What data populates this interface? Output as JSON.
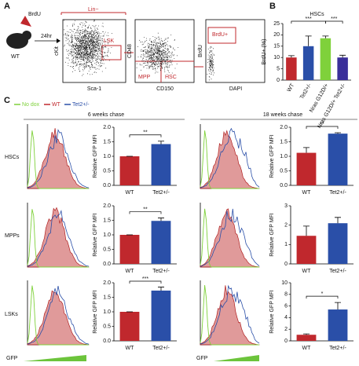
{
  "figure": {
    "panels": [
      "A",
      "B",
      "C"
    ],
    "schematic": {
      "injection": "BrdU",
      "time": "24hr",
      "mouse": "WT"
    },
    "flow_labels": {
      "lin": "Lin−",
      "lsk": "LSK",
      "ckit": "cKit",
      "sca1": "Sca-1",
      "cd48": "CD48",
      "cd150": "CD150",
      "mpp": "MPP",
      "hsc": "HSC",
      "brdu_axis": "BrdU",
      "dapi": "DAPI",
      "brdu_gate": "BrdU+"
    },
    "legend": [
      "No dox",
      "WT",
      "Tet2+/-"
    ],
    "chase": [
      "6 weeks chase",
      "18 weeks chase"
    ],
    "rows": [
      "HSCs",
      "MPPs",
      "LSKs"
    ],
    "gfp": "GFP"
  },
  "chart_data": [
    {
      "type": "bar",
      "title": "HSCs",
      "y_label": "BrdU+ (%)",
      "categories": [
        "WT",
        "Tet2+/-",
        "Nras G12D/+",
        "Nras G12D/+ Tet2+/-"
      ],
      "values": [
        10,
        15,
        18.5,
        10
      ],
      "errors": [
        0.8,
        4.5,
        1,
        1
      ],
      "colors": [
        "#c0282d",
        "#2a4fa8",
        "#7fd13b",
        "#3a2f9a"
      ],
      "ylim": [
        0,
        25
      ],
      "yticks": [
        0,
        5,
        10,
        15,
        20,
        25
      ],
      "annotations": [
        "***",
        "***"
      ]
    },
    {
      "type": "bar",
      "y_label": "Relative GFP MFI",
      "categories": [
        "WT",
        "Tet2+/-"
      ],
      "values": [
        1,
        1.42
      ],
      "errors": [
        0,
        0.1
      ],
      "colors": [
        "#c0282d",
        "#2a4fa8"
      ],
      "ylim": [
        0,
        2
      ],
      "yticks": [
        {
          "value": 0,
          "label": "0.0"
        },
        0.5,
        {
          "value": 1,
          "label": "1.0"
        },
        1.5,
        {
          "value": 2,
          "label": "2.0"
        }
      ],
      "annotations": [
        "**"
      ]
    },
    {
      "type": "bar",
      "y_label": "Relative GFP MFI",
      "categories": [
        "WT",
        "Tet2+/-"
      ],
      "values": [
        1,
        1.48
      ],
      "errors": [
        0,
        0.1
      ],
      "colors": [
        "#c0282d",
        "#2a4fa8"
      ],
      "ylim": [
        0,
        2
      ],
      "yticks": [
        {
          "value": 0,
          "label": "0.0"
        },
        0.5,
        {
          "value": 1,
          "label": "1.0"
        },
        1.5,
        {
          "value": 2,
          "label": "2.0"
        }
      ],
      "annotations": [
        "**"
      ]
    },
    {
      "type": "bar",
      "y_label": "Relative GFP MFI",
      "categories": [
        "WT",
        "Tet2+/-"
      ],
      "values": [
        1,
        1.73
      ],
      "errors": [
        0,
        0.12
      ],
      "colors": [
        "#c0282d",
        "#2a4fa8"
      ],
      "ylim": [
        0,
        2
      ],
      "yticks": [
        {
          "value": 0,
          "label": "0.0"
        },
        0.5,
        {
          "value": 1,
          "label": "1.0"
        },
        1.5,
        {
          "value": 2,
          "label": "2.0"
        }
      ],
      "annotations": [
        "***"
      ]
    },
    {
      "type": "bar",
      "y_label": "Relative GFP MFI",
      "categories": [
        "WT",
        "Tet2+/-"
      ],
      "values": [
        1.12,
        1.78
      ],
      "errors": [
        0.18,
        0.03
      ],
      "colors": [
        "#c0282d",
        "#2a4fa8"
      ],
      "ylim": [
        0,
        2
      ],
      "yticks": [
        {
          "value": 0,
          "label": "0.0"
        },
        0.5,
        {
          "value": 1,
          "label": "1.0"
        },
        1.5,
        {
          "value": 2,
          "label": "2.0"
        }
      ],
      "annotations": [
        "**"
      ]
    },
    {
      "type": "bar",
      "y_label": "Relative GFP MFI",
      "categories": [
        "WT",
        "Tet2+/-"
      ],
      "values": [
        1.45,
        2.1
      ],
      "errors": [
        0.5,
        0.3
      ],
      "colors": [
        "#c0282d",
        "#2a4fa8"
      ],
      "ylim": [
        0,
        3
      ],
      "yticks": [
        0,
        1,
        2,
        3
      ],
      "annotations": []
    },
    {
      "type": "bar",
      "y_label": "Relative GFP MFI",
      "categories": [
        "WT",
        "Tet2+/-"
      ],
      "values": [
        1.05,
        5.4
      ],
      "errors": [
        0.15,
        1.2
      ],
      "colors": [
        "#c0282d",
        "#2a4fa8"
      ],
      "ylim": [
        0,
        10
      ],
      "yticks": [
        0,
        2,
        4,
        6,
        8,
        10
      ],
      "annotations": [
        "*"
      ]
    }
  ]
}
